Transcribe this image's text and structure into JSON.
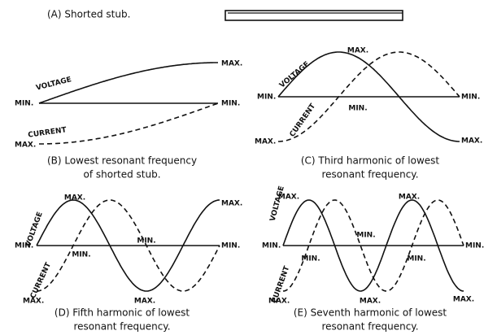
{
  "panel_a": {
    "caption": "(A) Shorted stub."
  },
  "panels": [
    {
      "caption": [
        "(B) Lowest resonant frequency",
        "of shorted stub."
      ],
      "labels": [
        "MAX.",
        "VOLTAGE",
        "MIN.",
        "MIN.",
        "CURRENT",
        "MAX."
      ]
    },
    {
      "caption": [
        "(C) Third harmonic of lowest",
        "resonant frequency."
      ],
      "labels": [
        "MAX.",
        "VOLTAGE",
        "MIN.",
        "MIN.",
        "MIN.",
        "CURRENT",
        "MAX.",
        "MAX."
      ]
    },
    {
      "caption": [
        "(D) Fifth harmonic of lowest",
        "resonant frequency."
      ],
      "labels": [
        "MAX.",
        "MAX.",
        "VOLTAGE",
        "MIN.",
        "MIN.",
        "MIN.",
        "MIN.",
        "CURRENT",
        "MAX.",
        "MAX."
      ]
    },
    {
      "caption": [
        "(E) Seventh harmonic of lowest",
        "resonant frequency."
      ],
      "labels": [
        "MAX.",
        "MAX.",
        "VOLTAGE",
        "MIN.",
        "MIN.",
        "MIN.",
        "MIN.",
        "MIN.",
        "CURRENT",
        "MAX.",
        "MAX.",
        "MAX."
      ]
    }
  ]
}
